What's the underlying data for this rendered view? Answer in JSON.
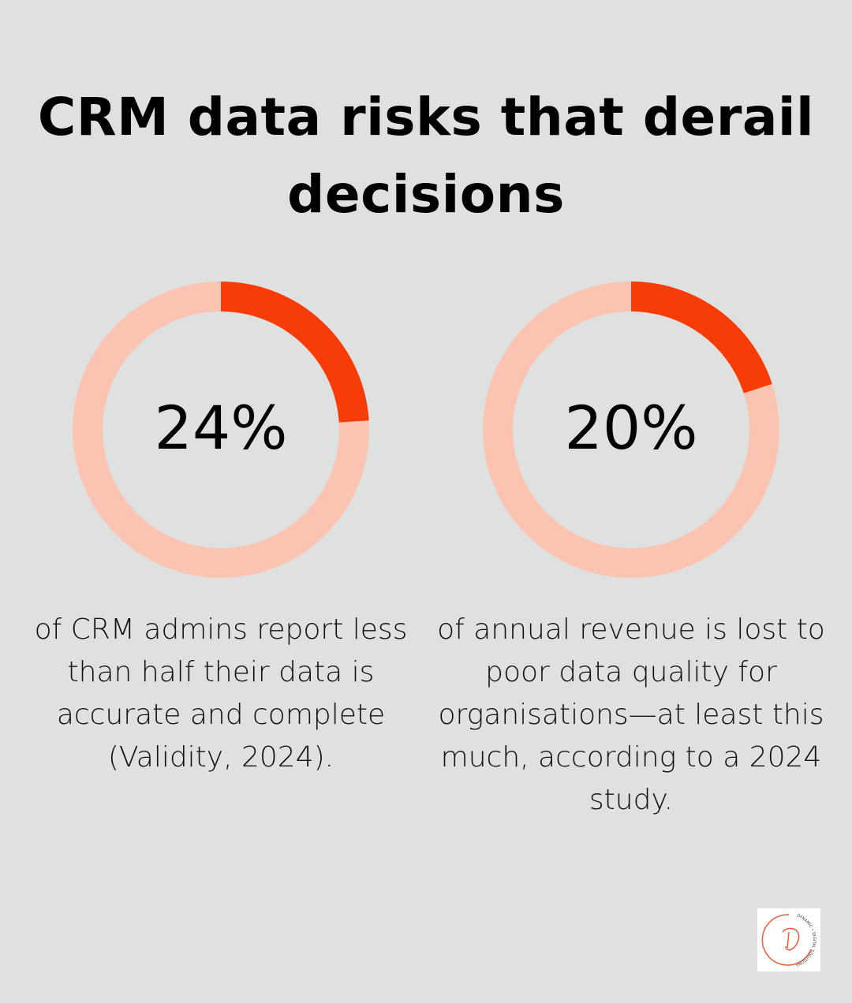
{
  "title": "CRM data risks that derail decisions",
  "colors": {
    "background": "#dfe1e0",
    "ring_track": "#fbc4b2",
    "ring_fill": "#f73c08"
  },
  "chart_data": [
    {
      "type": "pie",
      "variant": "donut",
      "value": 24,
      "max": 100,
      "label": "24%",
      "description": "of CRM admins report less than half their data is accurate and complete (Validity, 2024)."
    },
    {
      "type": "pie",
      "variant": "donut",
      "value": 20,
      "max": 100,
      "label": "20%",
      "description": "of annual revenue is lost to poor data quality for organisations—at least this much, according to a 2024 study."
    }
  ],
  "logo": {
    "text": "DYNAMIC • DIGITAL SOLUTIONS"
  }
}
